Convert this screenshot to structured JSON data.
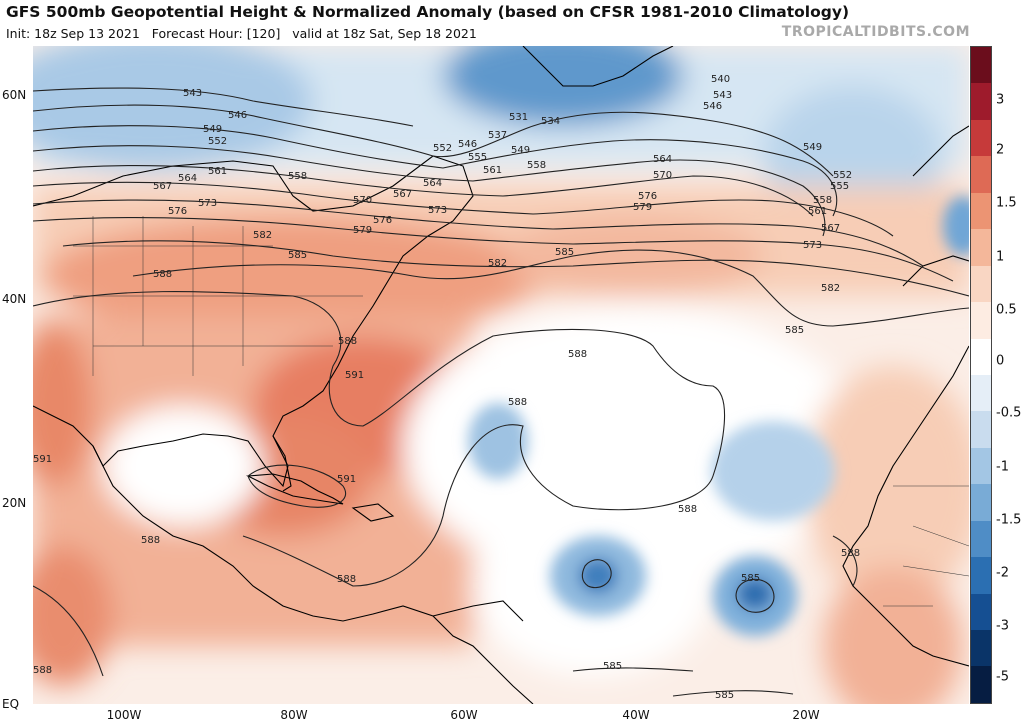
{
  "header": {
    "title": "GFS 500mb Geopotential Height & Normalized Anomaly (based on CFSR 1981-2010 Climatology)",
    "init": "Init: 18z Sep 13 2021",
    "forecast_hour": "Forecast Hour: [120]",
    "valid": "valid at 18z Sat, Sep 18 2021",
    "site": "TROPICALTIDBITS.COM"
  },
  "axes": {
    "lat_labels": [
      "60N",
      "40N",
      "20N",
      "EQ"
    ],
    "lon_labels": [
      "100W",
      "80W",
      "60W",
      "40W",
      "20W"
    ]
  },
  "colorbar": {
    "ticks": [
      "3",
      "2",
      "1.5",
      "1",
      "0.5",
      "0",
      "-0.5",
      "-1",
      "-1.5",
      "-2",
      "-3",
      "-5"
    ],
    "colors": [
      "#6b0d1c",
      "#9e1b2c",
      "#c63a3a",
      "#de6a55",
      "#ec9473",
      "#f4b79a",
      "#f9d6c3",
      "#fdece2",
      "#ffffff",
      "#e5eef7",
      "#c9dcee",
      "#a3c6e4",
      "#79abd6",
      "#4f8dc6",
      "#2b6fb2",
      "#154f92",
      "#0a3468",
      "#061d42"
    ]
  },
  "contours": {
    "labels": [
      "543",
      "546",
      "549",
      "552",
      "564",
      "561",
      "567",
      "573",
      "576",
      "558",
      "570",
      "582",
      "585",
      "588",
      "591",
      "531",
      "534",
      "537",
      "540",
      "555",
      "579"
    ]
  }
}
